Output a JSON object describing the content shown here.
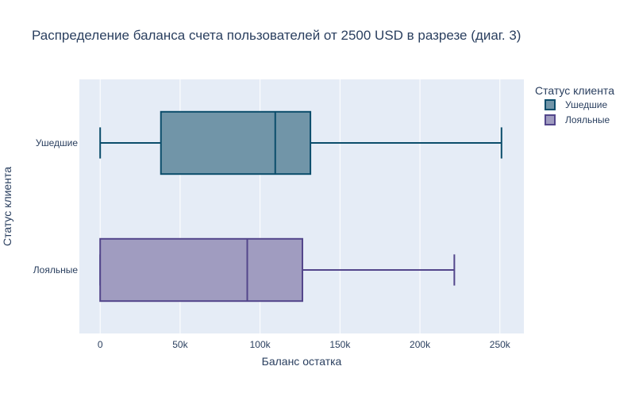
{
  "chart_data": {
    "type": "box",
    "orientation": "horizontal",
    "title": "Распределение баланса счета пользователей от 2500 USD в разрезе (диаг. 3)",
    "xlabel": "Баланс остатка",
    "ylabel": "Статус клиента",
    "xlim": [
      -13000,
      265000
    ],
    "xticks": [
      0,
      50000,
      100000,
      150000,
      200000,
      250000
    ],
    "xtick_labels": [
      "0",
      "50k",
      "100k",
      "150k",
      "200k",
      "250k"
    ],
    "grid": true,
    "legend": {
      "title": "Статус клиента",
      "position": "top-right"
    },
    "series": [
      {
        "name": "Ушедшие",
        "category": "Ушедшие",
        "color": "#0b4d6b",
        "fill": "#7195a8",
        "min": 0,
        "q1": 38000,
        "median": 109500,
        "q3": 131500,
        "max": 251000
      },
      {
        "name": "Лояльные",
        "category": "Лояльные",
        "color": "#53468b",
        "fill": "#a09cc0",
        "min": 0,
        "q1": 0,
        "median": 92000,
        "q3": 126500,
        "max": 221500
      }
    ]
  }
}
